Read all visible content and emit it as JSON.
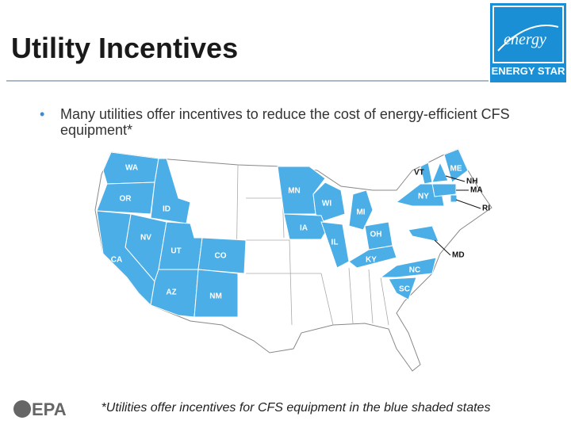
{
  "header": {
    "title": "Utility Incentives"
  },
  "logo": {
    "script": "energy",
    "name": "ENERGY STAR"
  },
  "bullets": [
    "Many utilities offer incentives to reduce the cost of energy-efficient CFS equipment*"
  ],
  "map": {
    "states": [
      "WA",
      "OR",
      "ID",
      "NV",
      "CA",
      "UT",
      "AZ",
      "CO",
      "NM",
      "MN",
      "WI",
      "IA",
      "MI",
      "IL",
      "OH",
      "KY",
      "NC",
      "SC",
      "VT",
      "NY",
      "ME",
      "NH",
      "MA",
      "RI",
      "MD"
    ]
  },
  "footnote": "*Utilities offer incentives for CFS equipment in the blue shaded states",
  "footer": {
    "agency": "EPA"
  }
}
